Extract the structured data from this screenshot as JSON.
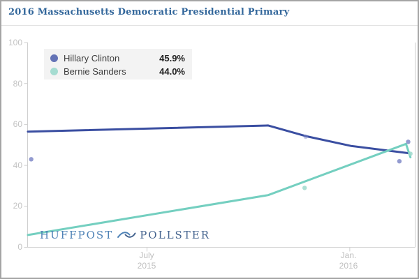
{
  "header": {
    "title": "2016 Massachusetts Democratic Presidential Primary"
  },
  "legend": {
    "items": [
      {
        "label": "Hillary Clinton",
        "value": "45.9%",
        "marker_color": "#6473b6"
      },
      {
        "label": "Bernie Sanders",
        "value": "44.0%",
        "marker_color": "#a5dcd1"
      }
    ]
  },
  "watermark": {
    "part1": "HUFFPOST",
    "part2": "POLLSTER",
    "bird_icon": "pollster-bird-icon"
  },
  "chart_data": {
    "type": "line",
    "title": "2016 Massachusetts Democratic Presidential Primary",
    "xlabel": "",
    "ylabel": "",
    "grid": false,
    "legend_position": "top-left",
    "x_axis": {
      "domain": [
        "2015-03-15",
        "2016-02-29"
      ],
      "ticks": [
        {
          "line1": "July",
          "line2": "2015",
          "date": "2015-07-01"
        },
        {
          "line1": "Jan.",
          "line2": "2016",
          "date": "2016-01-01"
        }
      ]
    },
    "y_axis": {
      "range": [
        0,
        100
      ],
      "ticks": [
        0,
        20,
        40,
        60,
        80,
        100
      ]
    },
    "series": [
      {
        "name": "Hillary Clinton",
        "final_value": 45.9,
        "line_color": "#3a4ea1",
        "dot_color": "#8089c8",
        "trend": [
          [
            "2015-03-15",
            56.5
          ],
          [
            "2015-10-19",
            59.5
          ],
          [
            "2015-11-22",
            54.3
          ],
          [
            "2016-01-02",
            49.5
          ],
          [
            "2016-02-24",
            45.9
          ]
        ],
        "polls": [
          [
            "2015-03-18",
            43.0
          ],
          [
            "2015-11-22",
            54.0,
            0.45
          ],
          [
            "2016-02-15",
            42.0
          ],
          [
            "2016-02-23",
            51.5
          ]
        ]
      },
      {
        "name": "Bernie Sanders",
        "final_value": 44.0,
        "line_color": "#74cfc0",
        "dot_color": "#9ed9cc",
        "trend": [
          [
            "2015-03-15",
            6.0
          ],
          [
            "2015-10-19",
            25.5
          ],
          [
            "2016-02-21",
            50.5
          ],
          [
            "2016-02-25",
            44.0
          ]
        ],
        "polls": [
          [
            "2015-11-21",
            29.0
          ],
          [
            "2016-02-25",
            45.7
          ]
        ]
      }
    ],
    "axis_color": "#cfcfcf",
    "tick_label_color": "#c3c3c3"
  }
}
